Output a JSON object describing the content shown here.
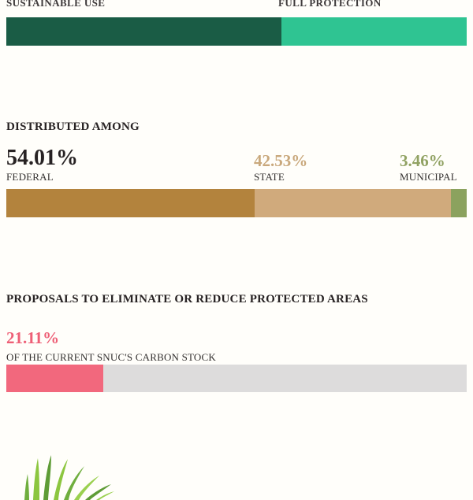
{
  "page": {
    "background": "#fffefa"
  },
  "chart_data": [
    {
      "type": "bar",
      "title": "",
      "categories": [
        "SUSTAINABLE USE",
        "FULL PROTECTION"
      ],
      "values": [
        59.8,
        40.2
      ],
      "value_labels": [
        "",
        ""
      ],
      "colors": [
        "#1a5c45",
        "#2fc492"
      ],
      "xlim": [
        0,
        100
      ],
      "orientation": "horizontal-stacked",
      "labels_position": "above-bar"
    },
    {
      "type": "bar",
      "title": "DISTRIBUTED AMONG",
      "categories": [
        "FEDERAL",
        "STATE",
        "MUNICIPAL"
      ],
      "values": [
        54.01,
        42.53,
        3.46
      ],
      "value_labels": [
        "54.01%",
        "42.53%",
        "3.46%"
      ],
      "colors": [
        "#b3833d",
        "#d0aa7c",
        "#8ba25e"
      ],
      "value_text_colors": [
        "#272223",
        "#c9a87c",
        "#91a263"
      ],
      "xlim": [
        0,
        100
      ],
      "orientation": "horizontal-stacked",
      "labels_position": "above-bar"
    },
    {
      "type": "bar",
      "title": "PROPOSALS TO ELIMINATE OR REDUCE PROTECTED AREAS",
      "categories": [
        "OF THE CURRENT SNUC'S CARBON STOCK"
      ],
      "values": [
        21.11
      ],
      "value_labels": [
        "21.11%"
      ],
      "colors": [
        "#f2687d"
      ],
      "value_text_colors": [
        "#ee5f76"
      ],
      "track_color": "#dddcdc",
      "xlim": [
        0,
        100
      ],
      "orientation": "horizontal",
      "labels_position": "above-bar"
    }
  ],
  "footer": {
    "grass_icon_colors": [
      "#6fae3e",
      "#8cc63f",
      "#5e9c36",
      "#9ad04f"
    ]
  }
}
